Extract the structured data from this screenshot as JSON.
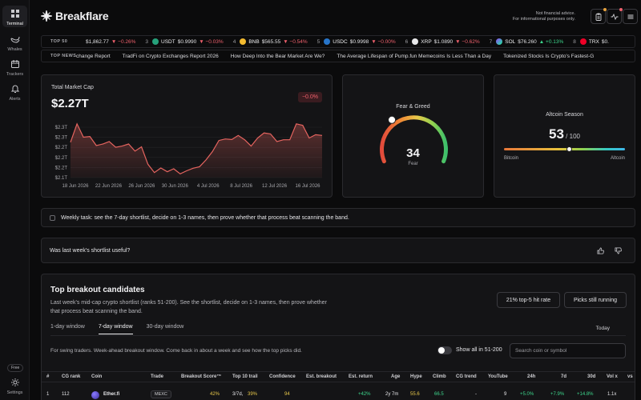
{
  "sidebar": {
    "items": [
      {
        "label": "Terminal",
        "icon": "grid-icon"
      },
      {
        "label": "Whales",
        "icon": "whale-icon"
      },
      {
        "label": "Trackers",
        "icon": "tracker-icon"
      },
      {
        "label": "Alerts",
        "icon": "bell-icon"
      }
    ],
    "badge": "Free",
    "settings_label": "Settings"
  },
  "header": {
    "brand": "Breakflare",
    "disclaimer_line1": "Not financial advice.",
    "disclaimer_line2": "For informational purposes only."
  },
  "top50": {
    "label": "TOP 50",
    "items": [
      {
        "rank": "",
        "symbol": "",
        "price": "$1,862.77",
        "change": "▼ −0.26%",
        "dir": "dn",
        "color": "#627eea"
      },
      {
        "rank": "3",
        "symbol": "USDT",
        "price": "$0.9990",
        "change": "▼ −0.03%",
        "dir": "dn",
        "color": "#26a17b"
      },
      {
        "rank": "4",
        "symbol": "BNB",
        "price": "$565.55",
        "change": "▼ −0.54%",
        "dir": "dn",
        "color": "#f3ba2f"
      },
      {
        "rank": "5",
        "symbol": "USDC",
        "price": "$0.9998",
        "change": "▼ −0.00%",
        "dir": "dn",
        "color": "#2775ca"
      },
      {
        "rank": "6",
        "symbol": "XRP",
        "price": "$1.0890",
        "change": "▼ −0.62%",
        "dir": "dn",
        "color": "#e8e8ea"
      },
      {
        "rank": "7",
        "symbol": "SOL",
        "price": "$76.260",
        "change": "▲ +0.13%",
        "dir": "up",
        "color": "#9945ff"
      },
      {
        "rank": "8",
        "symbol": "TRX",
        "price": "$0.",
        "change": "",
        "dir": "dn",
        "color": "#ef0027"
      }
    ]
  },
  "top_news": {
    "label": "TOP NEWS",
    "items": [
      "change Report",
      "TradFi on Crypto Exchanges Report 2026",
      "How Deep Into the Bear Market Are We?",
      "The Average Lifespan of Pump.fun Memecoins Is Less Than a Day",
      "Tokenized Stocks Is Crypto's Fastest-G"
    ]
  },
  "market_cap": {
    "title": "Total Market Cap",
    "value": "$2.27T",
    "change": "−0.0%"
  },
  "chart_data": {
    "type": "area",
    "title": "",
    "xlabel": "",
    "ylabel": "",
    "x_ticks": [
      "18 Jun 2026",
      "22 Jun 2026",
      "26 Jun 2026",
      "30 Jun 2026",
      "4 Jul 2026",
      "8 Jul 2026",
      "12 Jul 2026",
      "16 Jul 2026"
    ],
    "y_ticks": [
      "$2.3T",
      "$2.3T",
      "$2.2T",
      "$2.2T",
      "$2.2T",
      "$2.1T"
    ],
    "ylim": [
      2.105,
      2.33
    ],
    "values": [
      2.245,
      2.318,
      2.265,
      2.268,
      2.232,
      2.238,
      2.248,
      2.225,
      2.23,
      2.238,
      2.21,
      2.227,
      2.158,
      2.125,
      2.143,
      2.128,
      2.14,
      2.12,
      2.132,
      2.142,
      2.148,
      2.175,
      2.208,
      2.252,
      2.258,
      2.256,
      2.272,
      2.255,
      2.23,
      2.262,
      2.282,
      2.278,
      2.248,
      2.255,
      2.255,
      2.318,
      2.312,
      2.262,
      2.275,
      2.272
    ],
    "color": "#e5645f"
  },
  "fear_greed": {
    "title": "Fear & Greed",
    "value": 34,
    "label": "Fear"
  },
  "altcoin": {
    "title": "Altcoin Season",
    "value": "53",
    "max": "/ 100",
    "fraction": 0.53,
    "left": "Bitcoin",
    "right": "Altcoin"
  },
  "task": {
    "text": "Weekly task: see the 7-day shortlist, decide on 1-3 names, then prove whether that process beat scanning the band."
  },
  "feedback": {
    "question": "Was last week's shortlist useful?"
  },
  "breakout": {
    "title": "Top breakout candidates",
    "description": "Last week's mid-cap crypto shortlist (ranks 51-200). See the shortlist, decide on 1-3 names, then prove whether that process beat scanning the band.",
    "hit_rate_btn": "21% top-5 hit rate",
    "picks_btn": "Picks still running",
    "tabs": [
      "1-day window",
      "7-day window",
      "30-day window"
    ],
    "today": "Today",
    "note": "For swing traders. Week-ahead breakout window. Come back in about a week and see how the top picks did.",
    "toggle_label": "Show all in 51-200",
    "search_placeholder": "Search coin or symbol",
    "columns": [
      "#",
      "CG rank",
      "Coin",
      "Trade",
      "Breakout Score™",
      "Top 10 trail",
      "Confidence",
      "Est. breakout",
      "Est. return",
      "Age",
      "Hype",
      "Climb",
      "CG trend",
      "YouTube",
      "24h",
      "7d",
      "30d",
      "Vol x",
      "vs"
    ],
    "rows": [
      {
        "num": "1",
        "cg_rank": "112",
        "coin": "Ether.fi",
        "trade": "MEXC",
        "score": "42%",
        "trail_a": "3/7d,",
        "trail_b": "39%",
        "confidence": "94",
        "est_breakout": "",
        "est_return": "+42%",
        "age": "2y 7m",
        "hype": "55.6",
        "climb": "66.5",
        "cg_trend": "-",
        "youtube": "9",
        "h24": "+5.0%",
        "d7": "+7.9%",
        "d30": "+14.8%",
        "volx": "1.1x",
        "vs": ""
      }
    ]
  },
  "colors": {
    "accent_red": "#f0616d",
    "accent_green": "#3dd68c",
    "score_yellow": "#e8c84a"
  }
}
